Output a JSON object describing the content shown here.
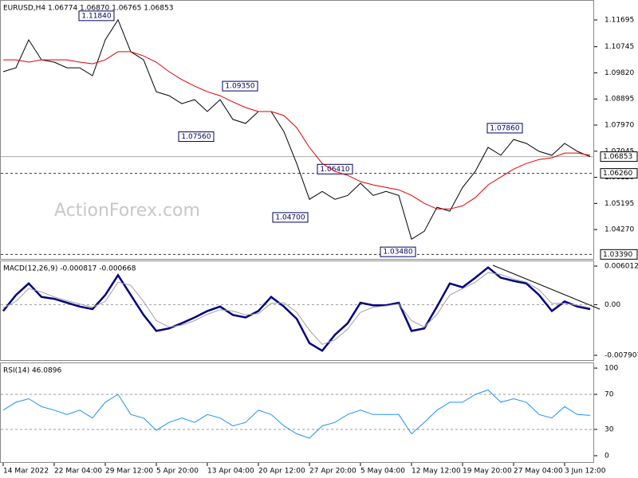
{
  "chart_data": [
    {
      "type": "line",
      "title": "EURUSD,H4  1.06774 1.06870 1.06765 1.06853",
      "watermark": "ActionForex.com",
      "categories": [
        "14 Mar 2022",
        null,
        null,
        null,
        "22 Mar 04:00",
        null,
        null,
        null,
        "29 Mar 12:00",
        null,
        null,
        null,
        "5 Apr 20:00",
        null,
        null,
        null,
        "13 Apr 04:00",
        null,
        null,
        null,
        "20 Apr 12:00",
        null,
        null,
        null,
        "27 Apr 20:00",
        null,
        null,
        null,
        "5 May 04:00",
        null,
        null,
        null,
        "12 May 12:00",
        null,
        null,
        null,
        "19 May 20:00",
        null,
        null,
        null,
        "27 May 04:00",
        null,
        null,
        null,
        "3 Jun 12:00",
        null,
        null
      ],
      "series": [
        {
          "color": "#000000",
          "values": [
            1.0986,
            1.1,
            1.1099,
            1.1028,
            1.102,
            1.1,
            1.1,
            1.0972,
            1.1099,
            1.117,
            1.1057,
            1.1028,
            1.0915,
            1.0901,
            1.0873,
            1.0887,
            1.0845,
            1.0887,
            1.0817,
            1.0803,
            1.0845,
            1.0845,
            1.0774,
            1.0661,
            1.0534,
            1.0562,
            1.0534,
            1.0548,
            1.0591,
            1.0548,
            1.0562,
            1.0548,
            1.0393,
            1.0421,
            1.0506,
            1.0492,
            1.0576,
            1.0633,
            1.0718,
            1.069,
            1.0746,
            1.0732,
            1.0704,
            1.069,
            1.0732,
            1.0704,
            1.0685
          ]
        },
        {
          "color": "#e00000",
          "values": [
            1.1028,
            1.1028,
            1.102,
            1.1028,
            1.1028,
            1.1028,
            1.102,
            1.1014,
            1.1028,
            1.1057,
            1.1057,
            1.1042,
            1.102,
            1.0986,
            1.0958,
            1.0935,
            1.0915,
            1.0901,
            1.0879,
            1.0859,
            1.0845,
            1.0845,
            1.0831,
            1.0788,
            1.0718,
            1.0661,
            1.0633,
            1.0619,
            1.0597,
            1.0585,
            1.0576,
            1.0568,
            1.0548,
            1.052,
            1.05,
            1.05,
            1.0511,
            1.054,
            1.0585,
            1.0613,
            1.0641,
            1.0661,
            1.0675,
            1.0681,
            1.0698,
            1.0698,
            1.069
          ]
        }
      ],
      "ylim": [
        1.0323,
        1.124
      ],
      "yticks": [
        1.11695,
        1.10745,
        {
          "value": 1.0982,
          "label": "1.09820"
        },
        1.08895,
        {
          "value": 1.0797,
          "label": "1.07970"
        },
        1.07045,
        {
          "value": 1.0612,
          "label": "1.06120"
        },
        1.05195,
        {
          "value": 1.0427,
          "label": "1.04270"
        }
      ],
      "hlines": [
        {
          "value": 1.06853,
          "label": "1.06853",
          "style": "solid"
        },
        {
          "value": 1.0626,
          "label": "1.06260",
          "style": "dashed"
        },
        {
          "value": 1.0339,
          "label": "1.03390",
          "style": "dashed"
        }
      ],
      "annotations": [
        {
          "value": 1.1184,
          "label": "1.11840"
        },
        {
          "value": 1.0935,
          "label": "1.09350"
        },
        {
          "value": 1.0756,
          "label": "1.07560"
        },
        {
          "value": 1.0641,
          "label": "1.06410"
        },
        {
          "value": 1.047,
          "label": "1.04700"
        },
        {
          "value": 1.0348,
          "label": "1.03480"
        },
        {
          "value": 1.0786,
          "label": "1.07860"
        }
      ]
    },
    {
      "type": "line",
      "title": "MACD(12,26,9) -0.000817 -0.000668",
      "series": [
        {
          "color": "#000080",
          "values": [
            -0.001,
            0.0015,
            0.0033,
            0.0012,
            0.0009,
            0.0003,
            -0.0003,
            -0.0007,
            0.0015,
            0.0046,
            0.0015,
            -0.0016,
            -0.0041,
            -0.0037,
            -0.0029,
            -0.002,
            -0.001,
            -0.0003,
            -0.0016,
            -0.002,
            -0.001,
            0.0012,
            -0.0003,
            -0.0022,
            -0.006,
            -0.0072,
            -0.0047,
            -0.0029,
            0.0003,
            -0.0001,
            -0.0001,
            0.0003,
            -0.0041,
            -0.0037,
            -0.0003,
            0.0033,
            0.0027,
            0.0042,
            0.0058,
            0.0042,
            0.0037,
            0.0033,
            0.0015,
            -0.001,
            0.0005,
            -0.0003,
            -0.0007
          ]
        },
        {
          "color": "#a0a0a0",
          "values": [
            -0.0005,
            0.0005,
            0.0025,
            0.002,
            0.0012,
            0.0006,
            0.0001,
            -0.0004,
            0.0005,
            0.0035,
            0.003,
            0.0005,
            -0.0025,
            -0.0035,
            -0.0032,
            -0.0025,
            -0.0015,
            -0.0008,
            -0.001,
            -0.0016,
            -0.0014,
            0.0002,
            0.0003,
            -0.0012,
            -0.004,
            -0.0062,
            -0.0055,
            -0.0038,
            -0.0012,
            -0.0004,
            -0.0002,
            0.0001,
            -0.0025,
            -0.0035,
            -0.0015,
            0.0015,
            0.0025,
            0.0035,
            0.005,
            0.0047,
            0.004,
            0.0035,
            0.0023,
            0.0002,
            0.0002,
            -0.0001,
            -0.0005
          ]
        }
      ],
      "ylim": [
        -0.00865,
        0.00688
      ],
      "yticks": [
        0.006012,
        {
          "value": 0,
          "label": "0.00"
        },
        -0.007907
      ],
      "level_lines": [
        0
      ]
    },
    {
      "type": "line",
      "title": "RSI(14) 46.0896",
      "series": [
        {
          "color": "#1e90ff",
          "values": [
            52,
            61,
            65,
            56,
            52,
            47,
            52,
            43,
            61,
            70,
            47,
            43,
            29,
            38,
            43,
            38,
            47,
            43,
            34,
            38,
            52,
            47,
            34,
            25,
            20,
            34,
            38,
            47,
            52,
            47,
            47,
            47,
            25,
            38,
            52,
            61,
            61,
            70,
            75,
            61,
            65,
            61,
            47,
            43,
            56,
            47,
            46
          ]
        }
      ],
      "ylim": [
        -7.3,
        106.4
      ],
      "yticks": [
        100,
        70,
        30,
        0
      ],
      "level_lines": [
        70,
        30
      ]
    }
  ]
}
